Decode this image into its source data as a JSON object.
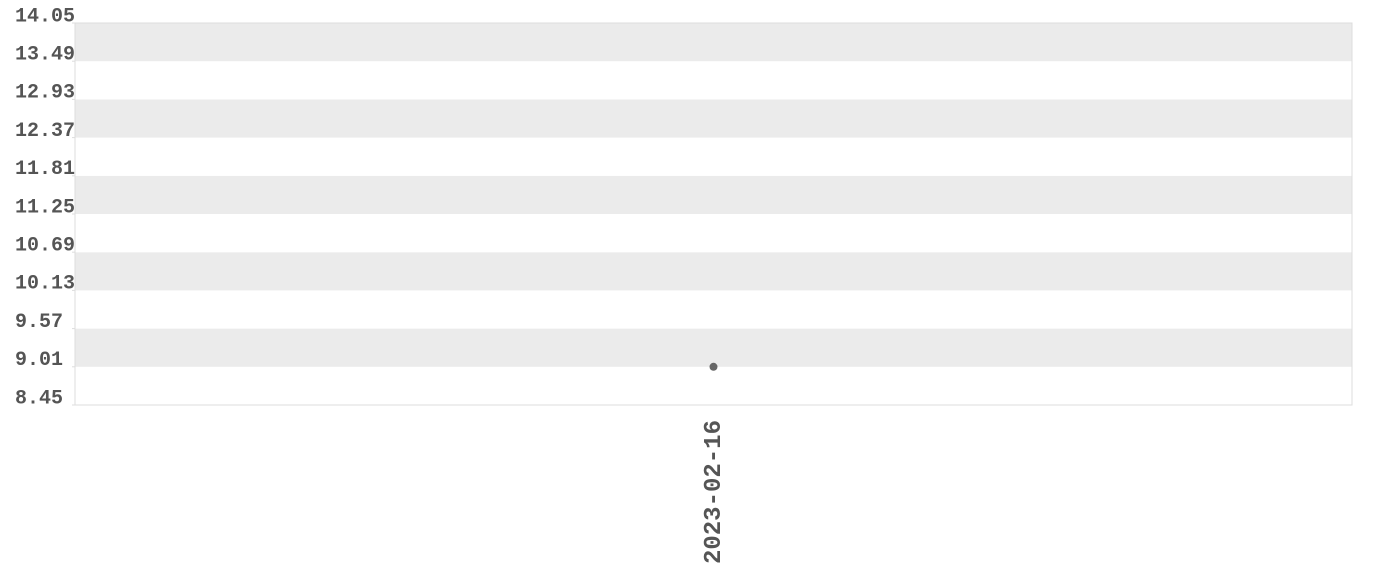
{
  "chart_data": {
    "type": "line",
    "categories": [
      "2023-02-16"
    ],
    "values": [
      9.01
    ],
    "color": "#666666",
    "ylim": [
      8.45,
      14.05
    ],
    "yticks": [
      8.45,
      9.01,
      9.57,
      10.13,
      10.69,
      11.25,
      11.81,
      12.37,
      12.93,
      13.49,
      14.05
    ],
    "grid": true
  }
}
